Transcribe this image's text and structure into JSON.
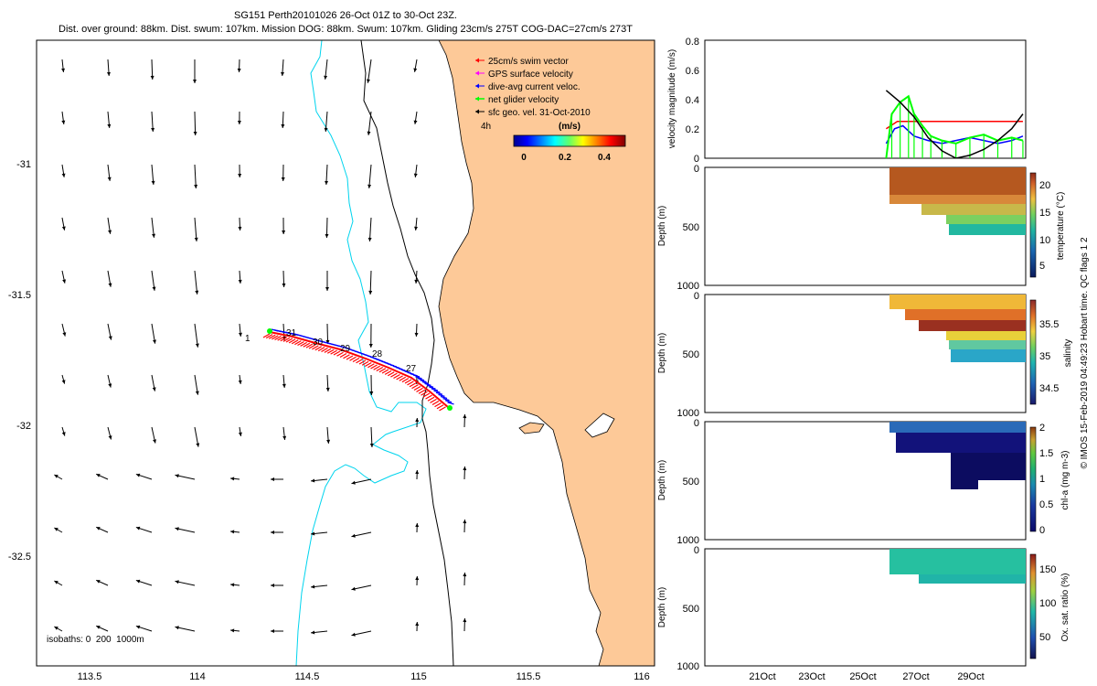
{
  "header": {
    "title_line1": "SG151 Perth20101026 26-Oct 01Z to 30-Oct 23Z.",
    "title_line2": "Dist. over ground: 88km. Dist. swum: 107km. Mission DOG: 88km. Swum: 107km. Gliding 23cm/s 275T COG-DAC=27cm/s 273T"
  },
  "footer": {
    "credit": "© IMOS 15-Feb-2019 04:49:23 Hobart time. QC flags 1 2"
  },
  "colors": {
    "land": "#fdc998",
    "isobath_200": "#00d4ee",
    "isobath_1000": "#000000",
    "swim_vector": "#ff0000",
    "gps_velocity": "#ff00ff",
    "dac": "#0000ff",
    "net_velocity": "#00ff00",
    "geo_velocity": "#000000"
  },
  "map": {
    "legend": [
      {
        "label": "25cm/s swim vector",
        "color": "#ff0000"
      },
      {
        "label": "GPS surface velocity",
        "color": "#ff00ff"
      },
      {
        "label": "dive-avg current veloc.",
        "color": "#0000ff"
      },
      {
        "label": "net glider velocity",
        "color": "#00ff00"
      },
      {
        "label": "sfc geo. vel. 31-Oct-2010",
        "color": "#000000"
      }
    ],
    "time_label": "4h",
    "colorbar": {
      "title": "(m/s)",
      "ticks": [
        "0",
        "0.2",
        "0.4"
      ],
      "range": [
        0,
        0.5
      ]
    },
    "isobath_label": "isobaths: 0  200  1000m",
    "x_ticks": [
      "113.5",
      "114",
      "114.5",
      "115",
      "115.5",
      "116"
    ],
    "y_ticks": [
      "-31",
      "-31.5",
      "-32",
      "-32.5"
    ],
    "xlim": [
      113.3,
      116.0
    ],
    "ylim": [
      -32.9,
      -30.5
    ],
    "day_labels": [
      "31",
      "30",
      "29",
      "28",
      "27",
      "1"
    ]
  },
  "chart_data": [
    {
      "type": "line",
      "title": "",
      "xlabel": "",
      "ylabel": "velocity magnitude (m/s)",
      "ylim": [
        0,
        0.8
      ],
      "yticks": [
        "0",
        "0.2",
        "0.4",
        "0.6",
        "0.8"
      ],
      "series": [
        {
          "color": "#ff0000",
          "x": [
            26.0,
            26.4,
            30.9
          ],
          "values": [
            0.2,
            0.25,
            0.25
          ]
        },
        {
          "color": "#0000ff",
          "x": [
            26.0,
            26.3,
            26.6,
            27.0,
            27.5,
            28.0,
            28.5,
            29.0,
            29.5,
            30.0,
            30.5,
            30.9
          ],
          "values": [
            0.1,
            0.2,
            0.22,
            0.15,
            0.12,
            0.1,
            0.12,
            0.14,
            0.12,
            0.1,
            0.12,
            0.15
          ]
        },
        {
          "color": "#00ff00",
          "x": [
            26.0,
            26.2,
            26.5,
            26.8,
            27.0,
            27.3,
            27.6,
            28.0,
            28.5,
            29.0,
            29.5,
            30.0,
            30.5,
            30.9
          ],
          "values": [
            0.0,
            0.3,
            0.38,
            0.42,
            0.3,
            0.22,
            0.15,
            0.12,
            0.1,
            0.14,
            0.16,
            0.12,
            0.14,
            0.12
          ]
        },
        {
          "color": "#000000",
          "x": [
            26.0,
            26.5,
            27.0,
            27.5,
            28.0,
            28.5,
            29.0,
            29.5,
            30.0,
            30.5,
            30.9
          ],
          "values": [
            0.46,
            0.38,
            0.28,
            0.14,
            0.05,
            0.0,
            0.02,
            0.06,
            0.12,
            0.2,
            0.3
          ]
        }
      ]
    },
    {
      "type": "heatmap",
      "ylabel": "Depth (m)",
      "colorbar_label": "temperature (°C)",
      "colorbar_ticks": [
        "20",
        "15",
        "10",
        "5"
      ],
      "yticks": [
        "0",
        "500",
        "1000"
      ],
      "range": [
        3,
        22
      ]
    },
    {
      "type": "heatmap",
      "ylabel": "Depth (m)",
      "colorbar_label": "salinity",
      "colorbar_ticks": [
        "35.5",
        "35",
        "34.5"
      ],
      "yticks": [
        "0",
        "500",
        "1000"
      ],
      "range": [
        34.2,
        35.9
      ]
    },
    {
      "type": "heatmap",
      "ylabel": "Depth (m)",
      "colorbar_label": "chl-a (mg m-3)",
      "colorbar_ticks": [
        "2",
        "1.5",
        "1",
        "0.5",
        "0"
      ],
      "yticks": [
        "0",
        "500",
        "1000"
      ],
      "range": [
        0,
        2
      ]
    },
    {
      "type": "heatmap",
      "ylabel": "Depth (m)",
      "colorbar_label": "Ox. sat. ratio (%)",
      "colorbar_ticks": [
        "150",
        "100",
        "50"
      ],
      "yticks": [
        "0",
        "500",
        "1000"
      ],
      "xticks": [
        "21Oct",
        "23Oct",
        "25Oct",
        "27Oct",
        "29Oct"
      ],
      "range": [
        20,
        170
      ]
    }
  ]
}
